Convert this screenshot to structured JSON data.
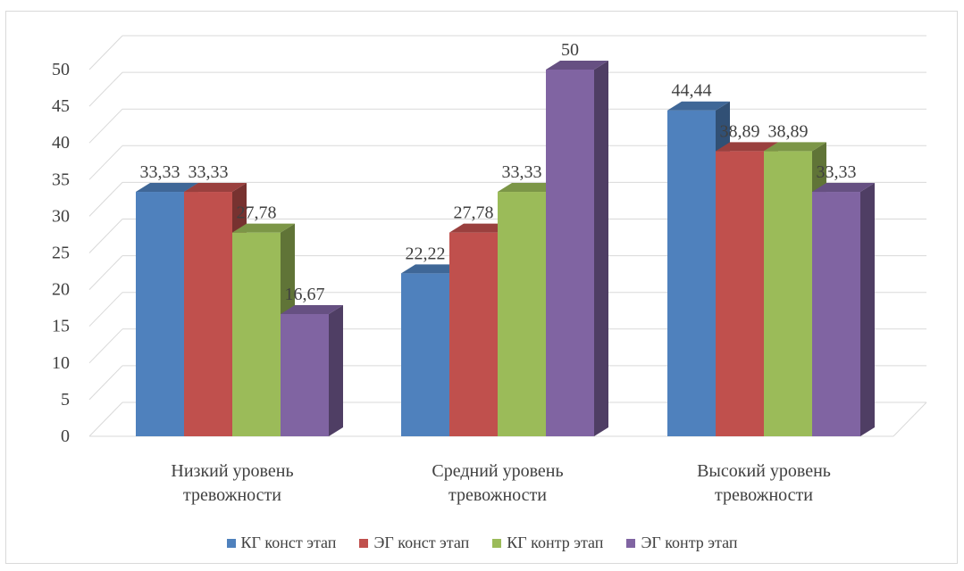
{
  "chart_data": {
    "type": "bar",
    "categories": [
      "Низкий уровень тревожности",
      "Средний уровень тревожности",
      "Высокий уровень тревожности"
    ],
    "series": [
      {
        "name": "КГ конст этап",
        "color": "#4f81bd",
        "values": [
          33.33,
          22.22,
          44.44
        ],
        "labels": [
          "33,33",
          "22,22",
          "44,44"
        ]
      },
      {
        "name": "ЭГ конст этап",
        "color": "#c0504d",
        "values": [
          33.33,
          27.78,
          38.89
        ],
        "labels": [
          "33,33",
          "27,78",
          "38,89"
        ]
      },
      {
        "name": "КГ контр этап",
        "color": "#9bbb59",
        "values": [
          27.78,
          33.33,
          38.89
        ],
        "labels": [
          "27,78",
          "33,33",
          "38,89"
        ]
      },
      {
        "name": "ЭГ контр этап",
        "color": "#8064a2",
        "values": [
          16.67,
          50,
          33.33
        ],
        "labels": [
          "16,67",
          "50",
          "33,33"
        ]
      }
    ],
    "yticks": [
      "0",
      "5",
      "10",
      "15",
      "20",
      "25",
      "30",
      "35",
      "40",
      "45",
      "50"
    ],
    "ylim": [
      0,
      50
    ],
    "grid": true,
    "legend": "bottom"
  }
}
